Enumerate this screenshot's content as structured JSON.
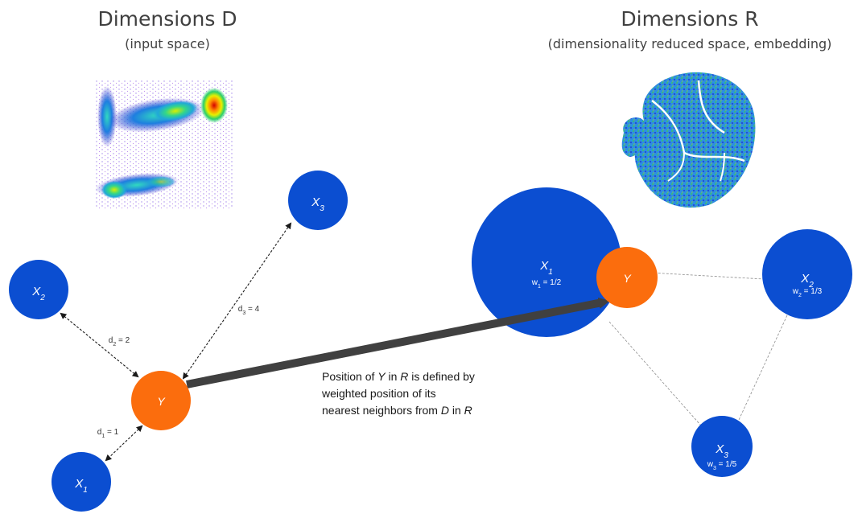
{
  "colors": {
    "node_blue": "#0b4ed1",
    "node_orange": "#fb6d0d",
    "arrow_dark": "#404040"
  },
  "left_panel": {
    "title": "Dimensions D",
    "subtitle": "(input space)",
    "image": "flow-cytometry-density-plot",
    "nodes": {
      "x1": {
        "base": "X",
        "sub": "1"
      },
      "x2": {
        "base": "X",
        "sub": "2"
      },
      "x3": {
        "base": "X",
        "sub": "3"
      },
      "y": {
        "base": "Y"
      }
    },
    "distances": {
      "d1": {
        "base": "d",
        "sub": "1",
        "value": " = 1"
      },
      "d2": {
        "base": "d",
        "sub": "2",
        "value": " = 2"
      },
      "d3": {
        "base": "d",
        "sub": "3",
        "value": " = 4"
      }
    }
  },
  "right_panel": {
    "title": "Dimensions R",
    "subtitle": "(dimensionality reduced space, embedding)",
    "image": "tsne-embedding-plot",
    "nodes": {
      "x1": {
        "base": "X",
        "sub": "1",
        "weight_base": "w",
        "weight_sub": "1",
        "weight_value": " = 1/2"
      },
      "x2": {
        "base": "X",
        "sub": "2",
        "weight_base": "w",
        "weight_sub": "2",
        "weight_value": " = 1/3"
      },
      "x3": {
        "base": "X",
        "sub": "3",
        "weight_base": "w",
        "weight_sub": "3",
        "weight_value": " = 1/5"
      },
      "y": {
        "base": "Y"
      }
    }
  },
  "caption": {
    "l1_pre": "Position of ",
    "l1_y": "Y",
    "l1_mid": " in ",
    "l1_r": "R",
    "l1_post": " is defined by",
    "l2": "weighted position of its",
    "l3_pre": "nearest neighbors from ",
    "l3_d": "D",
    "l3_mid": " in ",
    "l3_r": "R"
  }
}
